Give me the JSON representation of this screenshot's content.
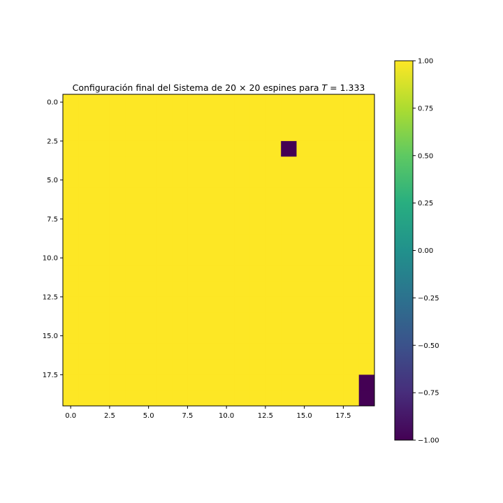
{
  "chart_data": {
    "type": "heatmap",
    "title": "Configuración final del Sistema de 20 × 20 espines para T = 1.333",
    "title_parts": {
      "prefix": "Configuración final del Sistema de ",
      "n1": "20",
      "times": " × ",
      "n2": "20",
      "mid": " espines para ",
      "var": "T",
      "eq": " = 1.333"
    },
    "xlabel": "",
    "ylabel": "",
    "rows": 20,
    "cols": 20,
    "default_value": 1,
    "minority_cells": [
      {
        "row": 3,
        "col": 14,
        "value": -1
      },
      {
        "row": 18,
        "col": 19,
        "value": -1
      },
      {
        "row": 19,
        "col": 19,
        "value": -1
      }
    ],
    "x_ticks": [
      0.0,
      2.5,
      5.0,
      7.5,
      10.0,
      12.5,
      15.0,
      17.5
    ],
    "x_tick_labels": [
      "0.0",
      "2.5",
      "5.0",
      "7.5",
      "10.0",
      "12.5",
      "15.0",
      "17.5"
    ],
    "y_ticks": [
      0.0,
      2.5,
      5.0,
      7.5,
      10.0,
      12.5,
      15.0,
      17.5
    ],
    "y_tick_labels": [
      "0.0",
      "2.5",
      "5.0",
      "7.5",
      "10.0",
      "12.5",
      "15.0",
      "17.5"
    ],
    "colormap": "viridis",
    "colorbar": {
      "vmin": -1.0,
      "vmax": 1.0,
      "ticks": [
        1.0,
        0.75,
        0.5,
        0.25,
        0.0,
        -0.25,
        -0.5,
        -0.75,
        -1.0
      ],
      "tick_labels": [
        "1.00",
        "0.75",
        "0.50",
        "0.25",
        "0.00",
        "−0.25",
        "−0.50",
        "−0.75",
        "−1.00"
      ],
      "placement": "right"
    },
    "colors": {
      "up": "#fde725",
      "down": "#440154"
    }
  }
}
